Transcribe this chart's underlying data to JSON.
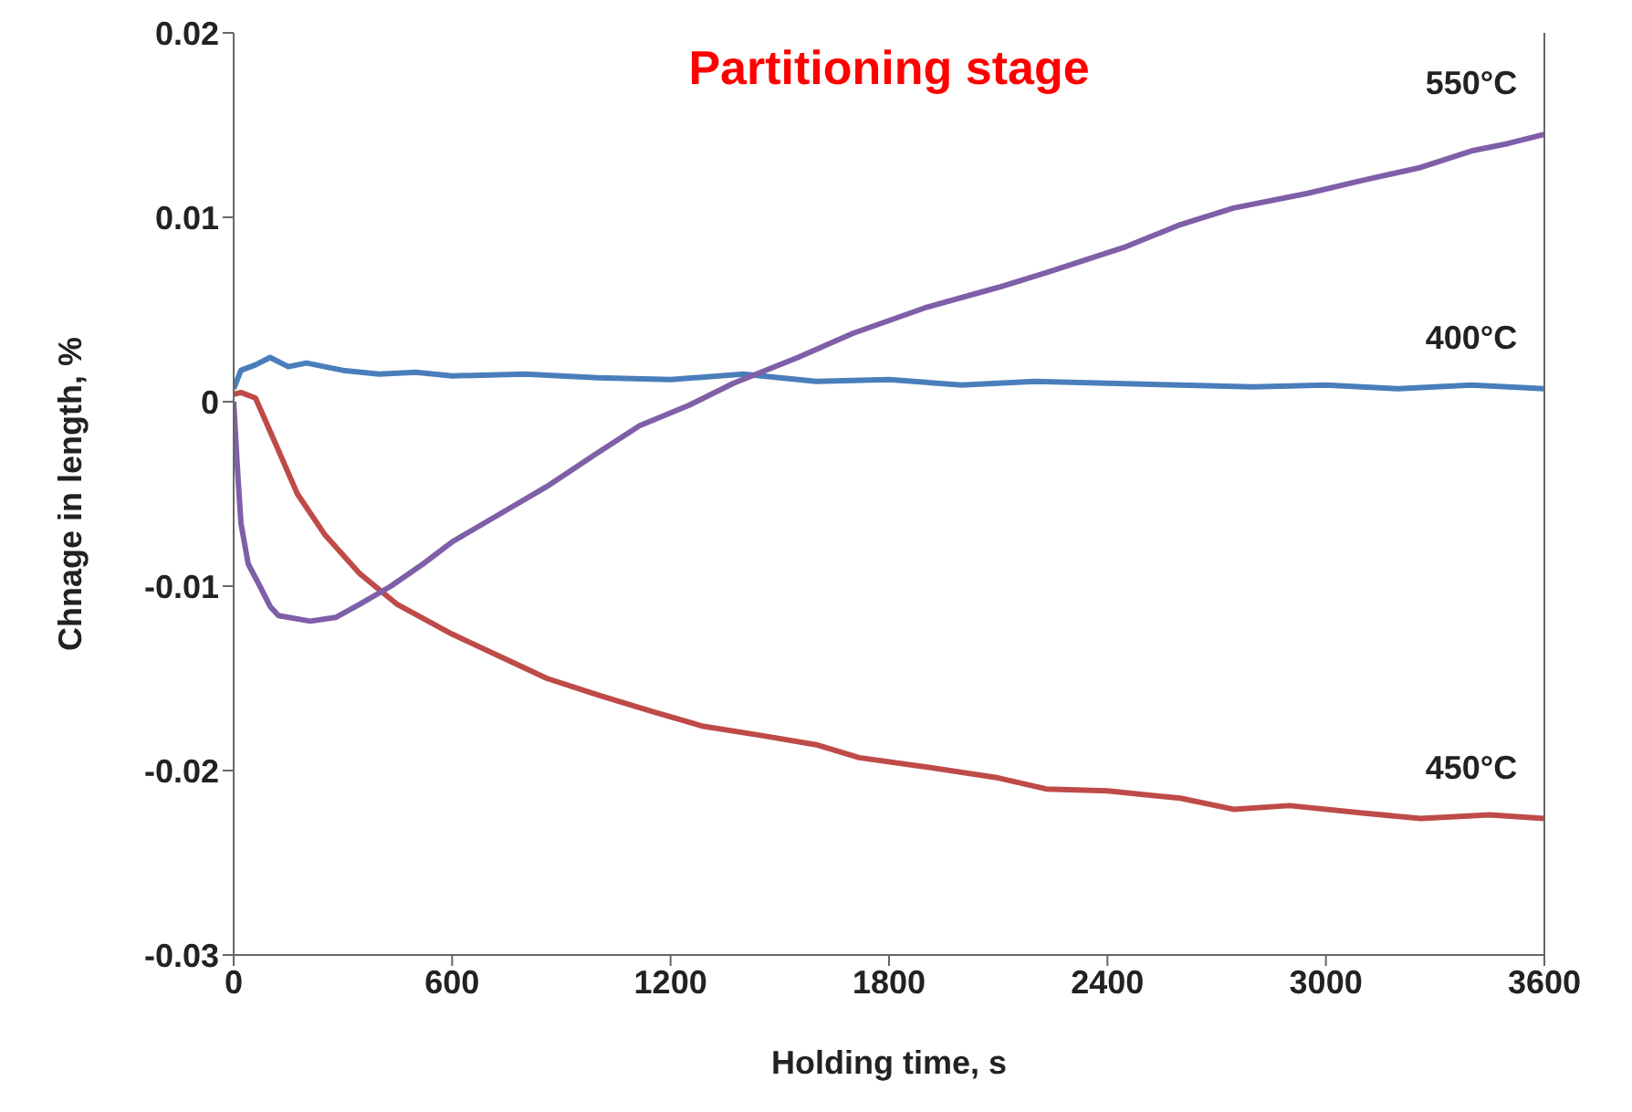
{
  "chart_data": {
    "type": "line",
    "title": "Partitioning stage",
    "xlabel": "Holding time, s",
    "ylabel": "Chnage in length, %",
    "series": [
      {
        "name": "400°C",
        "color": "#4a7ebb",
        "x": [
          0,
          20,
          60,
          100,
          150,
          200,
          300,
          400,
          500,
          600,
          800,
          1000,
          1200,
          1400,
          1600,
          1800,
          2000,
          2200,
          2400,
          2600,
          2800,
          3000,
          3200,
          3400,
          3600
        ],
        "values": [
          0.0007,
          0.0017,
          0.002,
          0.0024,
          0.0019,
          0.0021,
          0.0017,
          0.0015,
          0.0016,
          0.0014,
          0.0015,
          0.0013,
          0.0012,
          0.0015,
          0.0011,
          0.0012,
          0.0009,
          0.0011,
          0.001,
          0.0009,
          0.0008,
          0.0009,
          0.0007,
          0.0009,
          0.0007
        ]
      },
      {
        "name": "450°C",
        "color": "#be4b48",
        "x": [
          0,
          20,
          60,
          120,
          175,
          250,
          345,
          450,
          600,
          730,
          860,
          1000,
          1150,
          1290,
          1450,
          1600,
          1718,
          1900,
          2100,
          2232,
          2400,
          2600,
          2746,
          2900,
          3100,
          3260,
          3450,
          3600
        ],
        "values": [
          0.0004,
          0.0005,
          0.0002,
          -0.0025,
          -0.005,
          -0.0072,
          -0.0093,
          -0.011,
          -0.0126,
          -0.0138,
          -0.015,
          -0.0159,
          -0.0168,
          -0.0176,
          -0.0181,
          -0.0186,
          -0.0193,
          -0.0198,
          -0.0204,
          -0.021,
          -0.0211,
          -0.0215,
          -0.0221,
          -0.0219,
          -0.0223,
          -0.0226,
          -0.0224,
          -0.0226
        ]
      },
      {
        "name": "550°C",
        "color": "#7f5fa8",
        "x": [
          0,
          10,
          20,
          40,
          72,
          100,
          123,
          210,
          280,
          345,
          432,
          520,
          600,
          730,
          860,
          990,
          1115,
          1250,
          1373,
          1550,
          1700,
          1900,
          2100,
          2232,
          2450,
          2600,
          2746,
          2950,
          3100,
          3260,
          3400,
          3500,
          3600
        ],
        "values": [
          0,
          -0.0035,
          -0.0066,
          -0.0088,
          -0.01,
          -0.0111,
          -0.0116,
          -0.0119,
          -0.0117,
          -0.011,
          -0.01,
          -0.0088,
          -0.0076,
          -0.0061,
          -0.0046,
          -0.0029,
          -0.0013,
          -0.0002,
          0.001,
          0.0024,
          0.0037,
          0.0051,
          0.0062,
          0.007,
          0.0084,
          0.0096,
          0.0105,
          0.0113,
          0.012,
          0.0127,
          0.0136,
          0.014,
          0.0145
        ]
      }
    ],
    "xlim": [
      0,
      3600
    ],
    "xticks": [
      0,
      600,
      1200,
      1800,
      2400,
      3000,
      3600
    ],
    "ylim": [
      -0.03,
      0.02
    ],
    "yticks": [
      -0.03,
      -0.02,
      -0.01,
      0,
      0.01,
      0.02
    ],
    "grid": false,
    "legend": false,
    "marker": "none",
    "line_style": "solid"
  }
}
